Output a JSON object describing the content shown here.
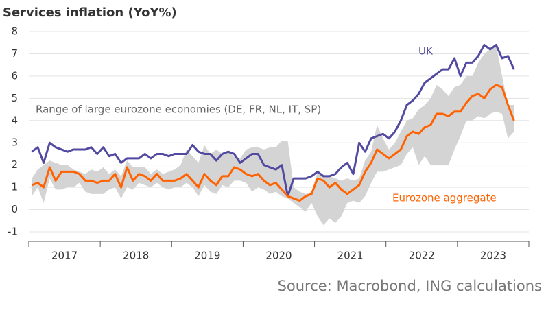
{
  "chart_data": {
    "type": "line",
    "title": "Services inflation (YoY%)",
    "source": "Source: Macrobond, ING calculations",
    "x": [
      2017.042,
      2017.125,
      2017.208,
      2017.292,
      2017.375,
      2017.458,
      2017.542,
      2017.625,
      2017.708,
      2017.792,
      2017.875,
      2017.958,
      2018.042,
      2018.125,
      2018.208,
      2018.292,
      2018.375,
      2018.458,
      2018.542,
      2018.625,
      2018.708,
      2018.792,
      2018.875,
      2018.958,
      2019.042,
      2019.125,
      2019.208,
      2019.292,
      2019.375,
      2019.458,
      2019.542,
      2019.625,
      2019.708,
      2019.792,
      2019.875,
      2019.958,
      2020.042,
      2020.125,
      2020.208,
      2020.292,
      2020.375,
      2020.458,
      2020.542,
      2020.625,
      2020.708,
      2020.792,
      2020.875,
      2020.958,
      2021.042,
      2021.125,
      2021.208,
      2021.292,
      2021.375,
      2021.458,
      2021.542,
      2021.625,
      2021.708,
      2021.792,
      2021.875,
      2021.958,
      2022.042,
      2022.125,
      2022.208,
      2022.292,
      2022.375,
      2022.458,
      2022.542,
      2022.625,
      2022.708,
      2022.792,
      2022.875,
      2022.958,
      2023.042,
      2023.125,
      2023.208,
      2023.292,
      2023.375,
      2023.458,
      2023.542,
      2023.625,
      2023.708,
      2023.792
    ],
    "series": [
      {
        "name": "UK",
        "color": "#524aa0",
        "values": [
          2.6,
          2.8,
          2.1,
          3.0,
          2.8,
          2.7,
          2.6,
          2.7,
          2.7,
          2.7,
          2.8,
          2.5,
          2.8,
          2.4,
          2.5,
          2.1,
          2.3,
          2.3,
          2.3,
          2.5,
          2.3,
          2.5,
          2.5,
          2.4,
          2.5,
          2.5,
          2.5,
          2.9,
          2.6,
          2.5,
          2.5,
          2.2,
          2.5,
          2.6,
          2.5,
          2.1,
          2.3,
          2.5,
          2.5,
          2.0,
          1.9,
          1.8,
          2.0,
          0.6,
          1.4,
          1.4,
          1.4,
          1.5,
          1.7,
          1.5,
          1.5,
          1.6,
          1.9,
          2.1,
          1.6,
          3.0,
          2.6,
          3.2,
          3.3,
          3.4,
          3.2,
          3.5,
          4.0,
          4.7,
          4.9,
          5.2,
          5.7,
          5.9,
          6.1,
          6.3,
          6.3,
          6.8,
          6.0,
          6.6,
          6.6,
          6.9,
          7.4,
          7.2,
          7.4,
          6.8,
          6.9,
          6.3
        ]
      },
      {
        "name": "Eurozone aggregate",
        "color": "#ff6200",
        "values": [
          1.1,
          1.2,
          1.0,
          1.9,
          1.3,
          1.7,
          1.7,
          1.7,
          1.6,
          1.3,
          1.3,
          1.2,
          1.3,
          1.3,
          1.6,
          1.0,
          1.9,
          1.3,
          1.6,
          1.5,
          1.3,
          1.6,
          1.3,
          1.3,
          1.3,
          1.4,
          1.6,
          1.3,
          1.0,
          1.6,
          1.3,
          1.1,
          1.5,
          1.5,
          1.9,
          1.8,
          1.6,
          1.5,
          1.6,
          1.3,
          1.1,
          1.2,
          0.9,
          0.6,
          0.5,
          0.4,
          0.6,
          0.7,
          1.4,
          1.3,
          1.0,
          1.2,
          0.9,
          0.7,
          0.9,
          1.1,
          1.7,
          2.1,
          2.7,
          2.5,
          2.3,
          2.5,
          2.7,
          3.3,
          3.5,
          3.4,
          3.7,
          3.8,
          4.3,
          4.3,
          4.2,
          4.4,
          4.4,
          4.8,
          5.1,
          5.2,
          5.0,
          5.4,
          5.6,
          5.5,
          4.7,
          4.0
        ]
      }
    ],
    "range": {
      "name": "Range of large eurozone economies (DE, FR, NL, IT, SP)",
      "color": "#d4d4d4",
      "high": [
        1.4,
        1.8,
        2.0,
        2.2,
        2.1,
        2.0,
        2.0,
        1.8,
        1.7,
        1.6,
        1.8,
        1.7,
        1.9,
        1.6,
        1.8,
        1.5,
        2.2,
        1.9,
        1.9,
        1.9,
        1.6,
        1.8,
        1.6,
        1.7,
        1.8,
        2.0,
        2.7,
        2.4,
        2.1,
        2.9,
        2.5,
        2.7,
        2.5,
        2.6,
        2.4,
        2.3,
        2.7,
        2.8,
        2.8,
        2.7,
        2.8,
        2.8,
        3.1,
        3.1,
        1.0,
        0.8,
        0.7,
        0.8,
        1.7,
        1.5,
        1.5,
        1.4,
        1.3,
        1.4,
        1.3,
        1.4,
        2.2,
        2.6,
        3.8,
        3.2,
        2.7,
        3.0,
        3.5,
        4.0,
        4.1,
        4.5,
        4.7,
        5.0,
        5.6,
        5.4,
        5.1,
        5.5,
        5.6,
        6.0,
        6.0,
        6.6,
        7.0,
        7.2,
        7.4,
        6.0,
        4.7,
        4.7
      ],
      "low": [
        0.6,
        1.0,
        0.3,
        1.4,
        0.9,
        0.9,
        1.0,
        1.0,
        1.2,
        0.8,
        0.7,
        0.7,
        0.7,
        0.9,
        1.0,
        0.5,
        1.0,
        0.9,
        1.2,
        1.1,
        1.0,
        1.2,
        1.0,
        0.9,
        1.0,
        1.0,
        1.2,
        1.0,
        0.6,
        1.1,
        0.8,
        0.7,
        1.1,
        1.0,
        1.3,
        1.3,
        1.2,
        0.8,
        1.0,
        0.9,
        0.7,
        0.8,
        0.6,
        0.5,
        0.3,
        0.1,
        -0.1,
        0.3,
        -0.3,
        -0.7,
        -0.4,
        -0.6,
        -0.3,
        0.3,
        0.4,
        0.3,
        0.6,
        1.2,
        1.7,
        1.7,
        1.8,
        1.9,
        2.0,
        2.5,
        2.8,
        2.0,
        2.4,
        2.0,
        2.0,
        2.0,
        2.0,
        2.7,
        3.3,
        4.0,
        4.0,
        4.2,
        4.1,
        4.3,
        4.4,
        4.3,
        3.2,
        3.5
      ]
    },
    "xlim": [
      2017,
      2024
    ],
    "xticks": [
      {
        "value": 2017.5,
        "label": "2017"
      },
      {
        "value": 2018.5,
        "label": "2018"
      },
      {
        "value": 2019.5,
        "label": "2019"
      },
      {
        "value": 2020.5,
        "label": "2020"
      },
      {
        "value": 2021.5,
        "label": "2021"
      },
      {
        "value": 2022.5,
        "label": "2022"
      },
      {
        "value": 2023.5,
        "label": "2023"
      }
    ],
    "ylim": [
      -1,
      8
    ],
    "yticks": [
      -1,
      0,
      1,
      2,
      3,
      4,
      5,
      6,
      7,
      8
    ],
    "grid": true
  }
}
